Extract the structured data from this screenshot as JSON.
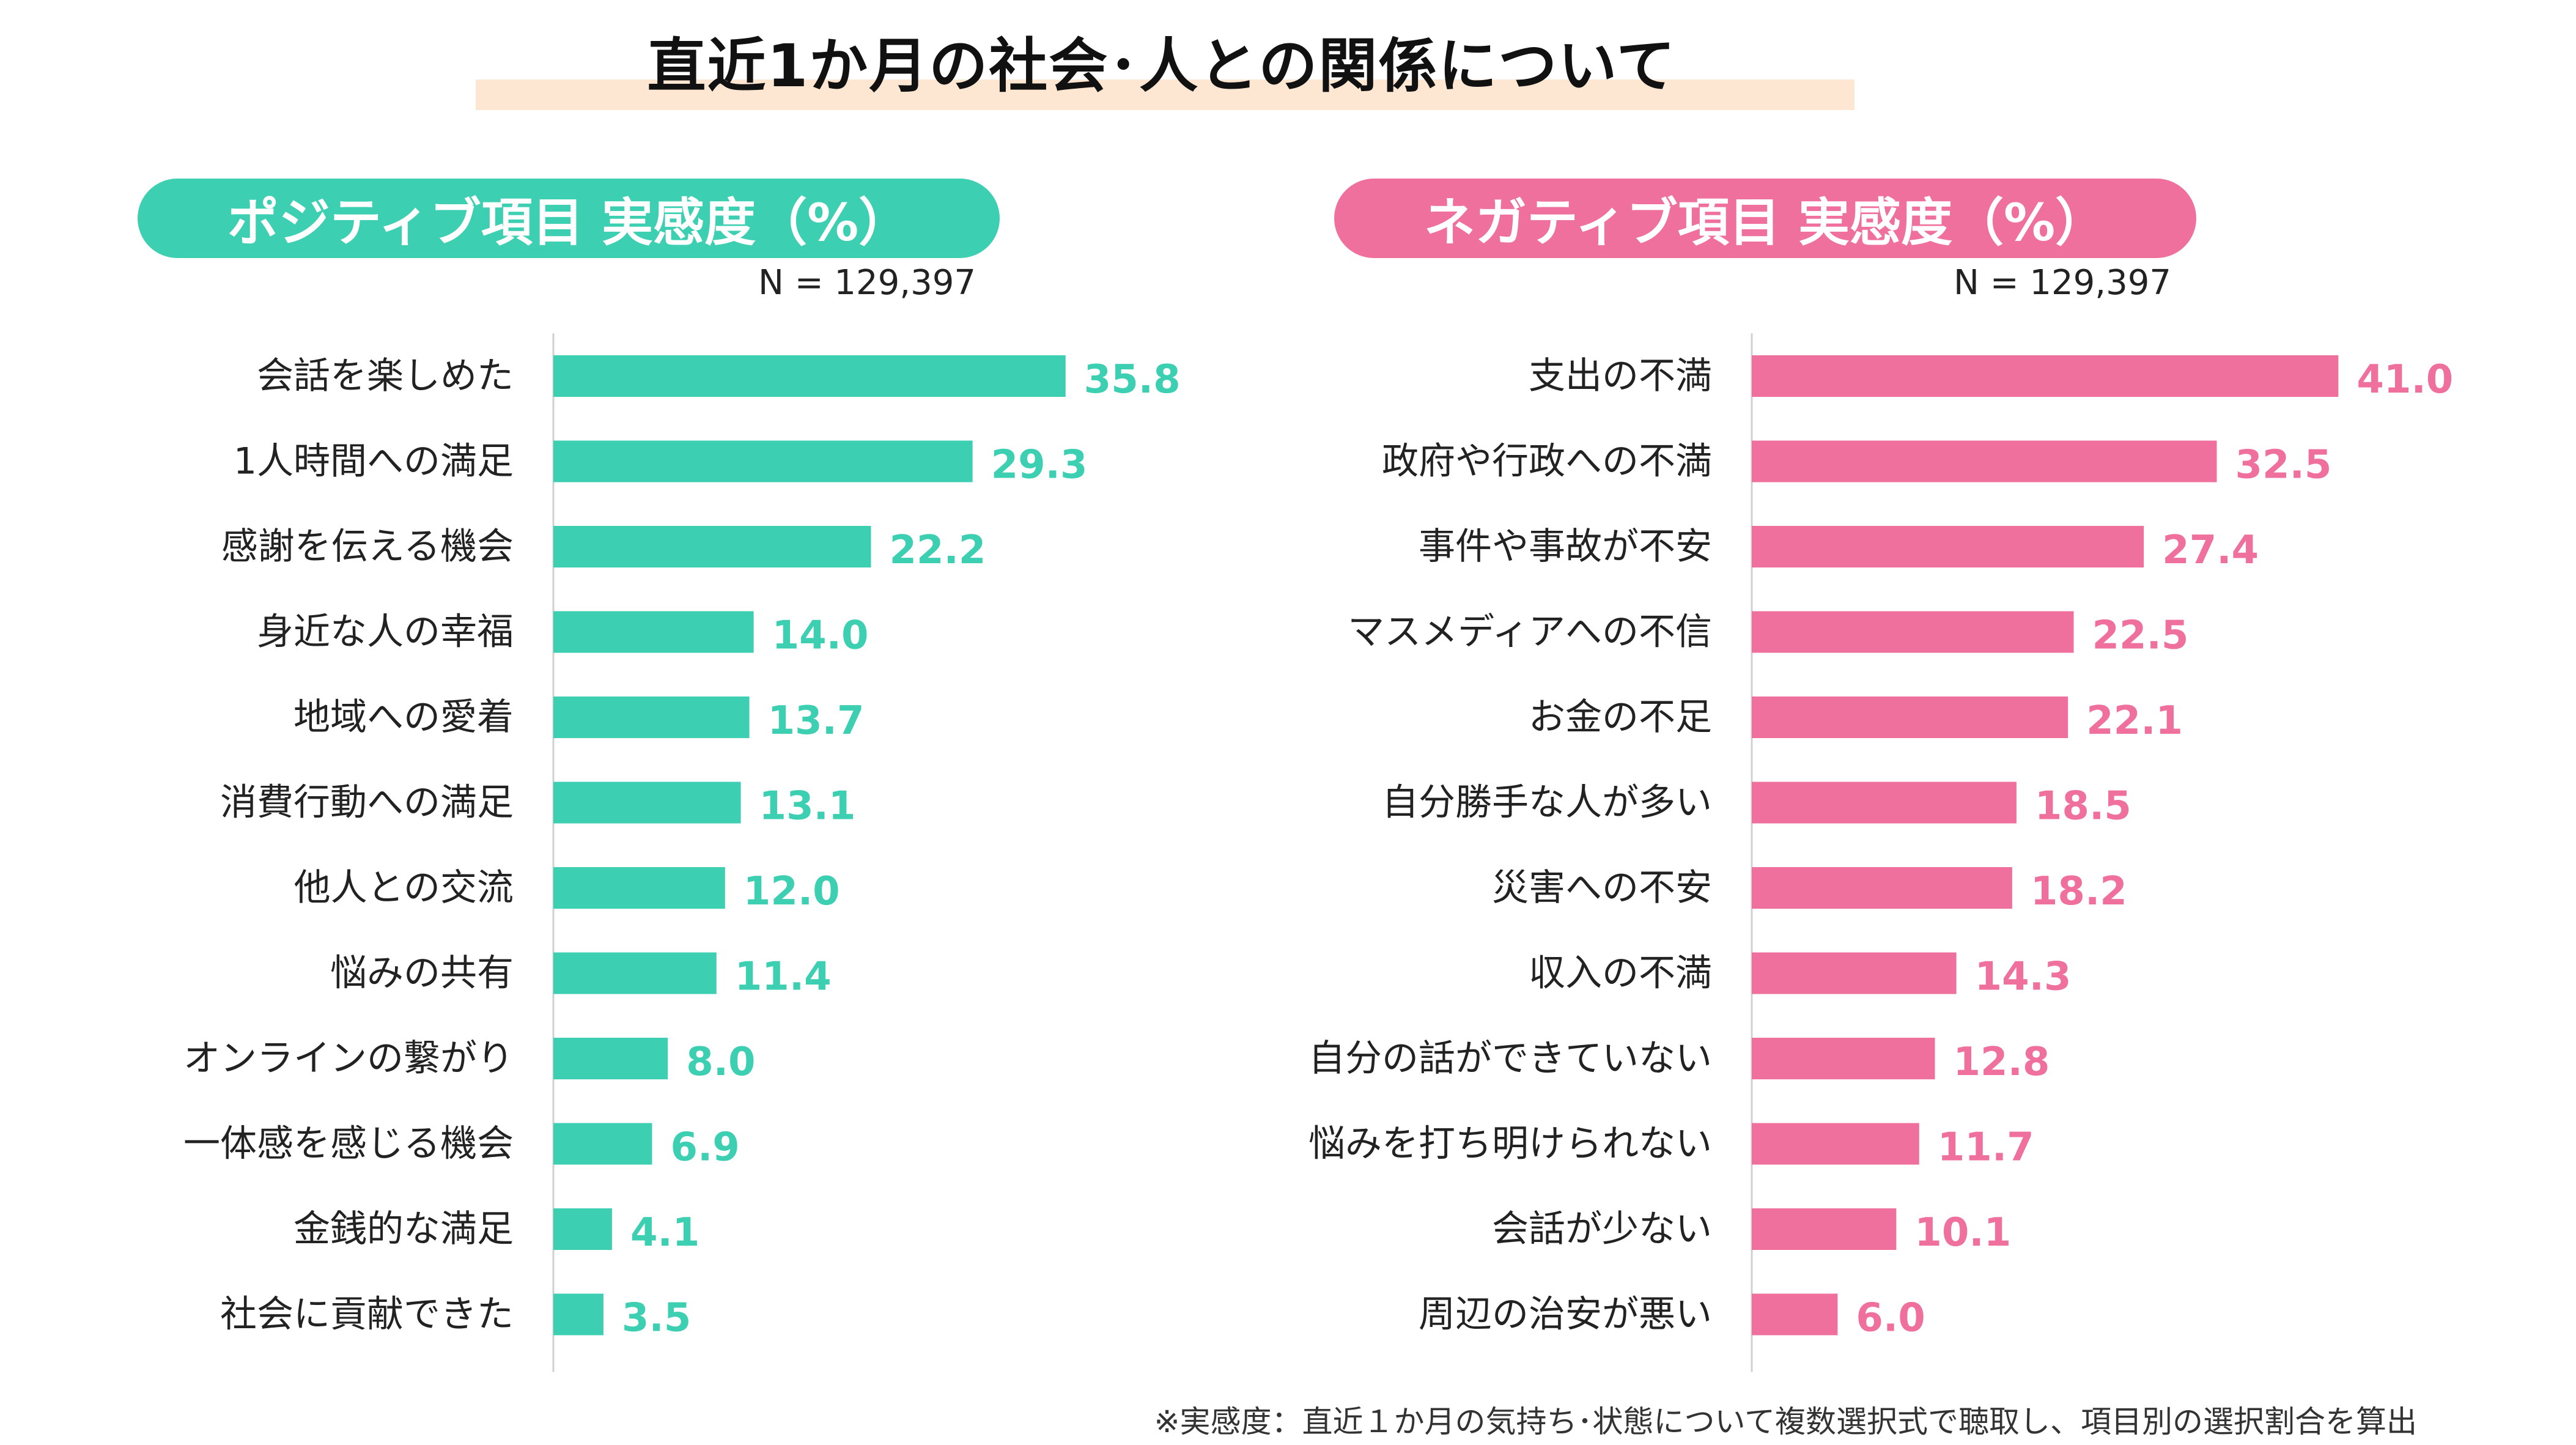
{
  "title": "直近1か月の社会･人との関係について",
  "colors": {
    "positive": "#3ccfb1",
    "negative": "#ef709d",
    "axis": "#d0d0d0",
    "band": "#fde6d2"
  },
  "footnote": "※実感度：直近１か月の気持ち･状態について複数選択式で聴取し、項目別の選択割合を算出",
  "chart_data": [
    {
      "type": "bar",
      "orientation": "horizontal",
      "title": "ポジティブ項目 実感度（%）",
      "n_label": "N = 129,397",
      "categories": [
        "会話を楽しめた",
        "1人時間への満足",
        "感謝を伝える機会",
        "身近な人の幸福",
        "地域への愛着",
        "消費行動への満足",
        "他人との交流",
        "悩みの共有",
        "オンラインの繋がり",
        "一体感を感じる機会",
        "金銭的な満足",
        "社会に貢献できた"
      ],
      "values": [
        35.8,
        29.3,
        22.2,
        14.0,
        13.7,
        13.1,
        12.0,
        11.4,
        8.0,
        6.9,
        4.1,
        3.5
      ],
      "value_labels": [
        "35.8",
        "29.3",
        "22.2",
        "14.0",
        "13.7",
        "13.1",
        "12.0",
        "11.4",
        "8.0",
        "6.9",
        "4.1",
        "3.5"
      ],
      "xlim": [
        0,
        100
      ]
    },
    {
      "type": "bar",
      "orientation": "horizontal",
      "title": "ネガティブ項目 実感度（%）",
      "n_label": "N = 129,397",
      "categories": [
        "支出の不満",
        "政府や行政への不満",
        "事件や事故が不安",
        "マスメディアへの不信",
        "お金の不足",
        "自分勝手な人が多い",
        "災害への不安",
        "収入の不満",
        "自分の話ができていない",
        "悩みを打ち明けられない",
        "会話が少ない",
        "周辺の治安が悪い"
      ],
      "values": [
        41.0,
        32.5,
        27.4,
        22.5,
        22.1,
        18.5,
        18.2,
        14.3,
        12.8,
        11.7,
        10.1,
        6.0
      ],
      "value_labels": [
        "41.0",
        "32.5",
        "27.4",
        "22.5",
        "22.1",
        "18.5",
        "18.2",
        "14.3",
        "12.8",
        "11.7",
        "10.1",
        "6.0"
      ],
      "xlim": [
        0,
        100
      ]
    }
  ]
}
